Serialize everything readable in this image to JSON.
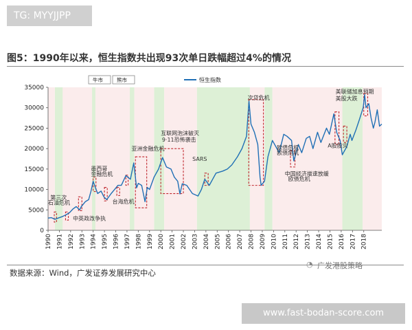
{
  "overlay": {
    "tag": "TG: MYYJJPP",
    "url": "www.fast-bodan-score.com"
  },
  "figure": {
    "title": "图5：1990年以来，恒生指数共出现93次单日跌幅超过4%的情况",
    "source": "数据来源：Wind，广发证券发展研究中心",
    "watermark": "广发港股策略"
  },
  "chart_data": {
    "type": "line",
    "series": [
      {
        "name": "恒生指数",
        "color": "#1f6fb5",
        "points": [
          [
            1990.0,
            3000
          ],
          [
            1990.3,
            3100
          ],
          [
            1990.6,
            2700
          ],
          [
            1990.9,
            3000
          ],
          [
            1991.3,
            3400
          ],
          [
            1991.6,
            3800
          ],
          [
            1991.9,
            4300
          ],
          [
            1992.2,
            5200
          ],
          [
            1992.5,
            5800
          ],
          [
            1992.8,
            5000
          ],
          [
            1992.95,
            5800
          ],
          [
            1993.3,
            7000
          ],
          [
            1993.6,
            7500
          ],
          [
            1993.8,
            9500
          ],
          [
            1994.0,
            12000
          ],
          [
            1994.15,
            10800
          ],
          [
            1994.4,
            9000
          ],
          [
            1994.7,
            9600
          ],
          [
            1994.95,
            8200
          ],
          [
            1995.2,
            7500
          ],
          [
            1995.6,
            9000
          ],
          [
            1995.9,
            10000
          ],
          [
            1996.2,
            11000
          ],
          [
            1996.5,
            11000
          ],
          [
            1996.9,
            13400
          ],
          [
            1997.3,
            12500
          ],
          [
            1997.6,
            16500
          ],
          [
            1997.85,
            10400
          ],
          [
            1998.0,
            11500
          ],
          [
            1998.3,
            11000
          ],
          [
            1998.6,
            7000
          ],
          [
            1998.8,
            10500
          ],
          [
            1999.0,
            10000
          ],
          [
            1999.4,
            13000
          ],
          [
            1999.8,
            15000
          ],
          [
            2000.15,
            17800
          ],
          [
            2000.5,
            15500
          ],
          [
            2000.9,
            15000
          ],
          [
            2001.2,
            13000
          ],
          [
            2001.5,
            12000
          ],
          [
            2001.7,
            8900
          ],
          [
            2001.9,
            11400
          ],
          [
            2002.3,
            11000
          ],
          [
            2002.8,
            9000
          ],
          [
            2003.3,
            8400
          ],
          [
            2003.6,
            10000
          ],
          [
            2003.9,
            12500
          ],
          [
            2004.3,
            11000
          ],
          [
            2004.6,
            12500
          ],
          [
            2004.9,
            14000
          ],
          [
            2005.5,
            14500
          ],
          [
            2005.9,
            15000
          ],
          [
            2006.3,
            16000
          ],
          [
            2006.8,
            18000
          ],
          [
            2007.2,
            20000
          ],
          [
            2007.6,
            23000
          ],
          [
            2007.82,
            31600
          ],
          [
            2008.0,
            26000
          ],
          [
            2008.3,
            24000
          ],
          [
            2008.6,
            21000
          ],
          [
            2008.8,
            13000
          ],
          [
            2008.9,
            11000
          ],
          [
            2009.2,
            12000
          ],
          [
            2009.5,
            18000
          ],
          [
            2009.9,
            22000
          ],
          [
            2010.3,
            20000
          ],
          [
            2010.5,
            19000
          ],
          [
            2010.9,
            23500
          ],
          [
            2011.2,
            23000
          ],
          [
            2011.6,
            22000
          ],
          [
            2011.8,
            17000
          ],
          [
            2011.95,
            18500
          ],
          [
            2012.2,
            21000
          ],
          [
            2012.5,
            19000
          ],
          [
            2012.9,
            22500
          ],
          [
            2013.2,
            23000
          ],
          [
            2013.5,
            20000
          ],
          [
            2013.9,
            24000
          ],
          [
            2014.2,
            21500
          ],
          [
            2014.7,
            25000
          ],
          [
            2014.95,
            23500
          ],
          [
            2015.35,
            28500
          ],
          [
            2015.6,
            24000
          ],
          [
            2015.9,
            22000
          ],
          [
            2016.1,
            18500
          ],
          [
            2016.5,
            20500
          ],
          [
            2016.8,
            23500
          ],
          [
            2016.95,
            22000
          ],
          [
            2017.3,
            24500
          ],
          [
            2017.6,
            27000
          ],
          [
            2017.95,
            30000
          ],
          [
            2018.08,
            33200
          ],
          [
            2018.2,
            30000
          ],
          [
            2018.45,
            31000
          ],
          [
            2018.65,
            27500
          ],
          [
            2018.85,
            25000
          ],
          [
            2019.0,
            26500
          ],
          [
            2019.2,
            29500
          ],
          [
            2019.4,
            25500
          ],
          [
            2019.6,
            26000
          ]
        ]
      }
    ],
    "xlim": [
      1990,
      2019.6
    ],
    "ylim": [
      0,
      35000
    ],
    "x_ticks": [
      "1990",
      "1991",
      "1992",
      "1993",
      "1994",
      "1995",
      "1996",
      "1997",
      "1998",
      "1999",
      "2000",
      "2001",
      "2002",
      "2003",
      "2004",
      "2005",
      "2006",
      "2007",
      "2008",
      "2009",
      "2010",
      "2011",
      "2012",
      "2013",
      "2014",
      "2015",
      "2016",
      "2017",
      "2018"
    ],
    "y_ticks": [
      0,
      5000,
      10000,
      15000,
      20000,
      25000,
      30000,
      35000
    ],
    "y_tick_labels": [
      "0",
      "5000",
      "10000",
      "15000",
      "20000",
      "25000",
      "30000",
      "35000"
    ],
    "grid": false,
    "legend": {
      "position": "top-left",
      "items": [
        "牛市",
        "熊市"
      ],
      "series_label": "恒生指数"
    },
    "bull_market_periods": [
      [
        1990.6,
        1991.3
      ],
      [
        1993.9,
        1994.2
      ],
      [
        1997.25,
        1997.65
      ],
      [
        1999.4,
        2000.3
      ],
      [
        2003.2,
        2007.9
      ],
      [
        2009.2,
        2009.9
      ],
      [
        2016.1,
        2017.9
      ]
    ],
    "bear_market_periods": [
      [
        1990.0,
        1990.6
      ],
      [
        1991.3,
        1993.9
      ],
      [
        1994.2,
        1997.25
      ],
      [
        1997.65,
        1999.4
      ],
      [
        2000.3,
        2003.2
      ],
      [
        2007.9,
        2009.2
      ],
      [
        2009.9,
        2016.1
      ],
      [
        2017.9,
        2019.6
      ]
    ],
    "crash_boxes": [
      {
        "x": [
          1990.55,
          1990.75
        ],
        "y": [
          2000,
          4500
        ]
      },
      {
        "x": [
          1991.55,
          1991.8
        ],
        "y": [
          2500,
          4500
        ]
      },
      {
        "x": [
          1992.7,
          1993.0
        ],
        "y": [
          4800,
          8200
        ]
      },
      {
        "x": [
          1994.0,
          1994.25
        ],
        "y": [
          9500,
          13000
        ]
      },
      {
        "x": [
          1995.0,
          1995.25
        ],
        "y": [
          7200,
          10500
        ]
      },
      {
        "x": [
          1996.1,
          1996.35
        ],
        "y": [
          8500,
          10500
        ]
      },
      {
        "x": [
          1996.9,
          1997.1
        ],
        "y": [
          11000,
          13500
        ]
      },
      {
        "x": [
          1997.75,
          1998.75
        ],
        "y": [
          5500,
          18000
        ]
      },
      {
        "x": [
          2000.0,
          2002.0
        ],
        "y": [
          9000,
          20000
        ]
      },
      {
        "x": [
          2003.9,
          2004.2
        ],
        "y": [
          11000,
          14000
        ]
      },
      {
        "x": [
          2007.8,
          2009.1
        ],
        "y": [
          11000,
          32000
        ]
      },
      {
        "x": [
          2011.5,
          2011.9
        ],
        "y": [
          15500,
          19500
        ]
      },
      {
        "x": [
          2015.45,
          2015.8
        ],
        "y": [
          21000,
          29000
        ]
      },
      {
        "x": [
          2016.2,
          2016.5
        ],
        "y": [
          21500,
          25500
        ]
      },
      {
        "x": [
          2018.0,
          2018.35
        ],
        "y": [
          28000,
          33500
        ]
      }
    ],
    "annotations": [
      {
        "text": "第三次",
        "x": 1990.2,
        "y": 7600
      },
      {
        "text": "石油危机",
        "x": 1990.0,
        "y": 6300
      },
      {
        "text": "中英政改争执",
        "x": 1992.2,
        "y": 2400
      },
      {
        "text": "墨西哥",
        "x": 1993.8,
        "y": 14600
      },
      {
        "text": "金融危机",
        "x": 1993.8,
        "y": 13300
      },
      {
        "text": "台海危机",
        "x": 1995.7,
        "y": 6600
      },
      {
        "text": "亚洲金融危机",
        "x": 1997.4,
        "y": 19500
      },
      {
        "text": "互联网泡沫破灭",
        "x": 2000.0,
        "y": 23300
      },
      {
        "text": "9·11恐怖袭击",
        "x": 2000.1,
        "y": 21700
      },
      {
        "text": "SARS",
        "x": 2002.8,
        "y": 17000
      },
      {
        "text": "次贷危机",
        "x": 2007.7,
        "y": 32000
      },
      {
        "text": "欧债危机",
        "x": 2010.3,
        "y": 19800
      },
      {
        "text": "欧债危机",
        "x": 2010.3,
        "y": 18500
      },
      {
        "text": "中国经济增速放缓",
        "x": 2011.0,
        "y": 13400
      },
      {
        "text": "欧债危机",
        "x": 2011.3,
        "y": 12100
      },
      {
        "text": "A股股灾",
        "x": 2014.8,
        "y": 20300
      },
      {
        "text": "美联储加息预期",
        "x": 2015.5,
        "y": 33500
      },
      {
        "text": "美股大跌",
        "x": 2015.5,
        "y": 31800
      }
    ]
  }
}
